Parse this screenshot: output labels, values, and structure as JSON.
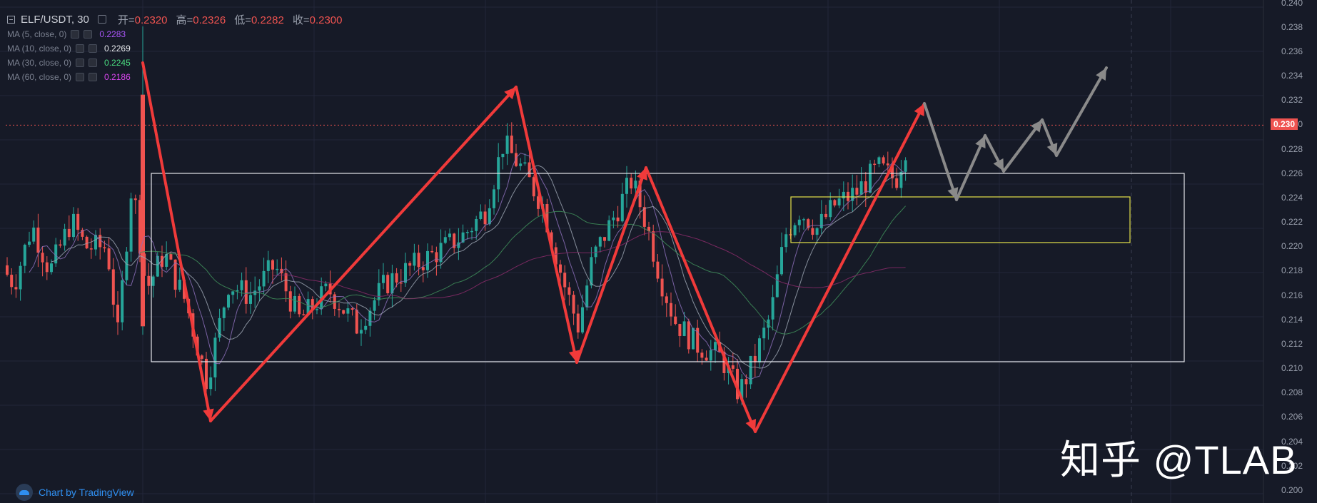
{
  "legend": {
    "symbol": "ELF/USDT, 30",
    "ohlc": [
      {
        "k": "开=",
        "v": "0.2320"
      },
      {
        "k": "高=",
        "v": "0.2326"
      },
      {
        "k": "低=",
        "v": "0.2282"
      },
      {
        "k": "收=",
        "v": "0.2300"
      }
    ],
    "mas": [
      {
        "label": "MA (5, close, 0)",
        "value": "0.2283",
        "color": "#a855f7"
      },
      {
        "label": "MA (10, close, 0)",
        "value": "0.2269",
        "color": "#e5e7eb"
      },
      {
        "label": "MA (30, close, 0)",
        "value": "0.2245",
        "color": "#4ade80"
      },
      {
        "label": "MA (60, close, 0)",
        "value": "0.2186",
        "color": "#d946ef"
      }
    ]
  },
  "price_axis": {
    "ticks": [
      "0.240",
      "0.238",
      "0.236",
      "0.234",
      "0.232",
      "0.230",
      "0.228",
      "0.226",
      "0.224",
      "0.222",
      "0.220",
      "0.218",
      "0.216",
      "0.214",
      "0.212",
      "0.210",
      "0.208",
      "0.206",
      "0.204",
      "0.202",
      "0.200"
    ],
    "current_price": "0.230",
    "current_color": "#ef5350"
  },
  "watermark": "知乎 @TLAB",
  "brand": "Chart by TradingView",
  "colors": {
    "up": "#26a69a",
    "down": "#ef5350",
    "bg": "#161a27",
    "arrow_red": "#f03a3a",
    "arrow_gray": "#8a8a8a",
    "box_white": "#e5e7eb",
    "box_yellow": "#e6e34a"
  }
}
